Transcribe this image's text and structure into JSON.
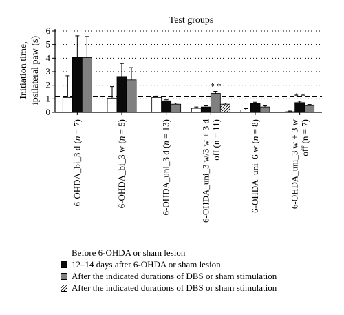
{
  "chart_data": {
    "type": "bar",
    "title": "Test groups",
    "ylabel_line1": "Initiation time,",
    "ylabel_line2": "ipsilateral paw (s)",
    "xlabel": "",
    "ylim": [
      0,
      6
    ],
    "yticks": [
      "0",
      "1",
      "2",
      "3",
      "4",
      "5",
      "6"
    ],
    "grid": "dotted horizontal lines at each integer",
    "reference_line": 1.15,
    "categories": [
      {
        "label": "6-OHDA_bi_3 d (",
        "n": "n",
        "tail": " = 7)",
        "label2": ""
      },
      {
        "label": "6-OHDA_bi_3 w (",
        "n": "n",
        "tail": " = 5)",
        "label2": ""
      },
      {
        "label": "6-OHDA_uni_3 d (",
        "n": "n",
        "tail": " = 13)",
        "label2": ""
      },
      {
        "label": "6-OHDA_uni_3 w/3 w + 3 d",
        "n": "",
        "tail": "",
        "label2": "off (n = 11)"
      },
      {
        "label": "6-OHDA_uni_6 w (",
        "n": "n",
        "tail": " = 8)",
        "label2": ""
      },
      {
        "label": "6-OHDA_uni_3 w + 3 w",
        "n": "",
        "tail": "",
        "label2": "off (n = 7)"
      }
    ],
    "series": [
      {
        "name": "Before 6-OHDA or sham lesion",
        "color": "#ffffff",
        "pattern": "none",
        "values": [
          1.1,
          1.05,
          1.1,
          0.3,
          0.18,
          0.05
        ],
        "errors": [
          1.6,
          0.85,
          0.1,
          0.1,
          0.1,
          0.05
        ]
      },
      {
        "name": "12–14 days after 6-OHDA or sham lesion",
        "color": "#0a0a0a",
        "pattern": "none",
        "values": [
          4.05,
          2.65,
          0.85,
          0.4,
          0.65,
          0.72
        ],
        "errors": [
          1.6,
          0.95,
          0.08,
          0.08,
          0.1,
          0.1
        ]
      },
      {
        "name": "After the indicated durations of DBS or sham stimulation",
        "color": "#808080",
        "pattern": "none",
        "values": [
          4.05,
          2.4,
          0.6,
          1.4,
          0.4,
          0.5
        ],
        "errors": [
          1.55,
          0.9,
          0.08,
          0.15,
          0.08,
          0.08
        ]
      },
      {
        "name": "After the indicated durations of DBS or sham stimulation",
        "color": "#ffffff",
        "pattern": "hatch",
        "values": [
          null,
          null,
          null,
          0.6,
          null,
          null
        ],
        "errors": [
          null,
          null,
          null,
          0.08,
          null,
          null
        ]
      }
    ],
    "annotations": [
      {
        "category": 3,
        "series": 2,
        "text": "* *"
      },
      {
        "category": 5,
        "series": 1,
        "text": "* *"
      }
    ],
    "legend_position": "bottom"
  }
}
